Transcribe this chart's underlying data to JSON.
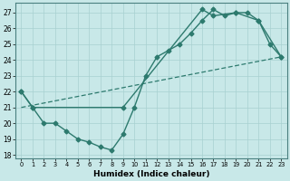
{
  "xlabel": "Humidex (Indice chaleur)",
  "bg_color": "#c8e8e8",
  "grid_color": "#a8d0d0",
  "line_color": "#2d7a6e",
  "xlim": [
    -0.5,
    23.5
  ],
  "ylim": [
    17.8,
    27.6
  ],
  "xticks": [
    0,
    1,
    2,
    3,
    4,
    5,
    6,
    7,
    8,
    9,
    10,
    11,
    12,
    13,
    14,
    15,
    16,
    17,
    18,
    19,
    20,
    21,
    22,
    23
  ],
  "yticks": [
    18,
    19,
    20,
    21,
    22,
    23,
    24,
    25,
    26,
    27
  ],
  "curve1_x": [
    0,
    1,
    2,
    3,
    4,
    5,
    6,
    7,
    8,
    9,
    10,
    11,
    12,
    13,
    14,
    15,
    16,
    17,
    18,
    19,
    20,
    21,
    22,
    23
  ],
  "curve1_y": [
    22.0,
    21.0,
    20.0,
    20.0,
    19.5,
    19.0,
    18.8,
    18.5,
    18.3,
    19.3,
    21.0,
    23.0,
    24.2,
    24.6,
    25.0,
    25.7,
    26.5,
    27.2,
    26.8,
    27.0,
    27.0,
    26.5,
    25.0,
    24.2
  ],
  "curve2_x": [
    0,
    1,
    9,
    16,
    17,
    19,
    21,
    23
  ],
  "curve2_y": [
    22.0,
    21.0,
    21.0,
    27.2,
    26.8,
    27.0,
    26.5,
    24.2
  ],
  "curve3_x": [
    0,
    23
  ],
  "curve3_y": [
    21.0,
    24.2
  ]
}
